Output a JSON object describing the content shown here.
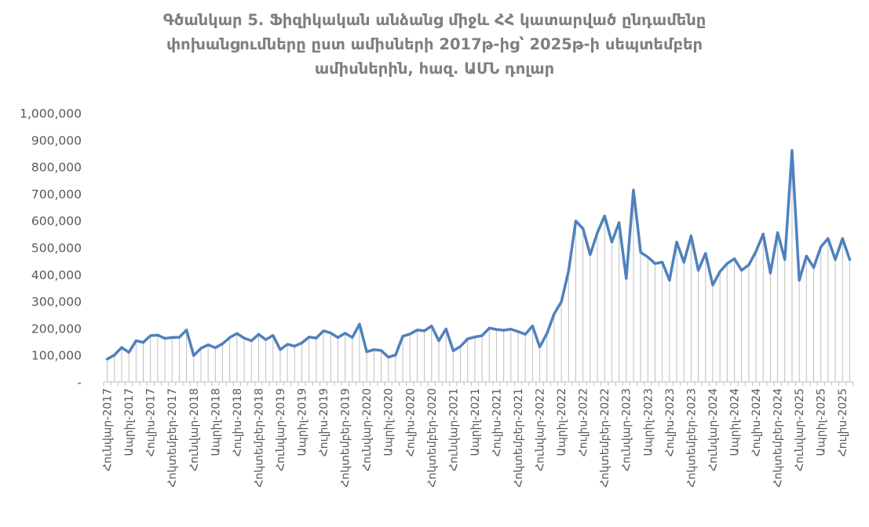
{
  "chart_data": {
    "type": "area",
    "title_lines": [
      "Գծանկար 5. Ֆիզիկական անձանց միջև ՀՀ կատարված ընդամենը",
      "փոխանցումները ըստ ամիսների 2017թ-ից՝ 2025թ-ի սեպտեմբեր",
      "ամիսներին, հազ. ԱՄՆ դոլար"
    ],
    "ylim": [
      0,
      1000000
    ],
    "yticks": [
      0,
      100000,
      200000,
      300000,
      400000,
      500000,
      600000,
      700000,
      800000,
      900000,
      1000000
    ],
    "ytick_labels": [
      "-",
      "100,000",
      "200,000",
      "300,000",
      "400,000",
      "500,000",
      "600,000",
      "700,000",
      "800,000",
      "900,000",
      "1,000,000"
    ],
    "start": "2017-01",
    "xtick_labels": [
      "Հունվար-2017",
      "Ապրիլ-2017",
      "Հուլիս-2017",
      "Հոկտեմբեր-2017",
      "Հունվար-2018",
      "Ապրիլ-2018",
      "Հուլիս-2018",
      "Հոկտեմբեր-2018",
      "Հունվար-2019",
      "Ապրիլ-2019",
      "Հուլիս-2019",
      "Հոկտեմբեր-2019",
      "Հունվար-2020",
      "Ապրիլ-2020",
      "Հուլիս-2020",
      "Հոկտեմբեր-2020",
      "Հունվար-2021",
      "Ապրիլ-2021",
      "Հուլիս-2021",
      "Հոկտեմբեր-2021",
      "Հունվար-2022",
      "Ապրիլ-2022",
      "Հուլիս-2022",
      "Հոկտեմբեր-2022",
      "Հունվար-2023",
      "Ապրիլ-2023",
      "Հուլիս-2023",
      "Հոկտեմբեր-2023",
      "Հունվար-2024",
      "Ապրիլ-2024",
      "Հուլիս-2024",
      "Հոկտեմբեր-2024",
      "Հունվար-2025",
      "Ապրիլ-2025",
      "Հուլիս-2025"
    ],
    "grid": false,
    "legend": "none",
    "line_color": "#4f81bd",
    "fill_line_color": "#bfbfbf",
    "values": [
      85000,
      100000,
      128000,
      110000,
      153000,
      147000,
      172000,
      174000,
      162000,
      165000,
      166000,
      193000,
      98000,
      125000,
      138000,
      127000,
      142000,
      165000,
      180000,
      163000,
      153000,
      177000,
      157000,
      173000,
      120000,
      140000,
      133000,
      145000,
      167000,
      163000,
      190000,
      182000,
      165000,
      181000,
      165000,
      215000,
      112000,
      120000,
      117000,
      92000,
      100000,
      170000,
      178000,
      193000,
      190000,
      208000,
      153000,
      197000,
      116000,
      132000,
      160000,
      167000,
      172000,
      200000,
      195000,
      192000,
      196000,
      187000,
      177000,
      208000,
      130000,
      180000,
      253000,
      298000,
      412000,
      598000,
      570000,
      473000,
      555000,
      617000,
      520000,
      592000,
      385000,
      713000,
      482000,
      464000,
      440000,
      445000,
      378000,
      520000,
      445000,
      543000,
      415000,
      478000,
      360000,
      410000,
      440000,
      458000,
      415000,
      435000,
      485000,
      550000,
      405000,
      555000,
      455000,
      860000,
      378000,
      468000,
      425000,
      502000,
      533000,
      455000,
      533000,
      455000
    ]
  }
}
